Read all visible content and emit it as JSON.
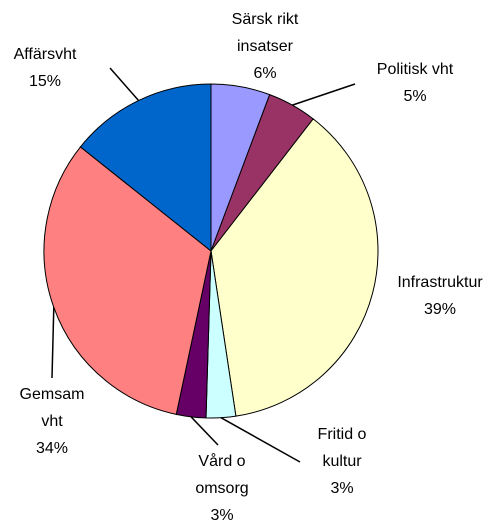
{
  "chart_data": {
    "type": "pie",
    "categories": [
      "Särsk rikt\ninsatser",
      "Politisk vht",
      "Infrastruktur",
      "Fritid o\nkultur",
      "Vård o\nomsorg",
      "Gemsam\nvht",
      "Affärsvht"
    ],
    "values": [
      6,
      5,
      39,
      3,
      3,
      34,
      15
    ],
    "value_labels": [
      "6%",
      "5%",
      "39%",
      "3%",
      "3%",
      "34%",
      "15%"
    ],
    "colors": [
      "#9999ff",
      "#993366",
      "#ffffcc",
      "#ccffff",
      "#660066",
      "#ff8080",
      "#0066cc"
    ]
  }
}
